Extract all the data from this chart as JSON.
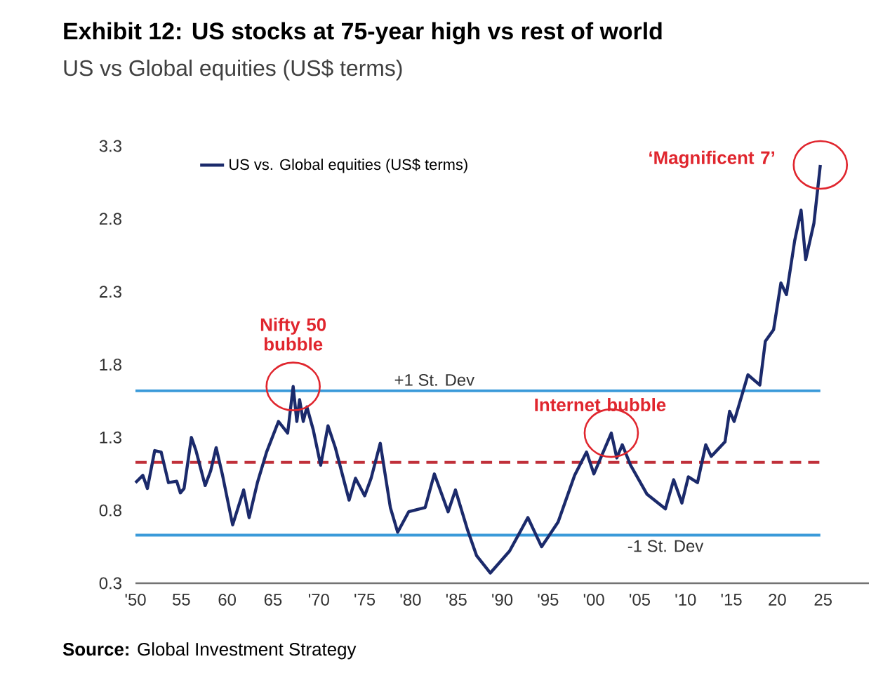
{
  "chart_data": {
    "type": "line",
    "title": "Exhibit 12: US stocks at 75-year high vs rest of world",
    "subtitle": "US vs Global equities (US$ terms)",
    "series": [
      {
        "name": "US vs. Global equities (US$ terms)",
        "color": "#1b2a6b",
        "x": [
          1950.0,
          1950.8,
          1951.3,
          1952.1,
          1952.8,
          1953.6,
          1954.5,
          1954.9,
          1955.3,
          1956.1,
          1956.6,
          1957.6,
          1958.2,
          1958.8,
          1959.5,
          1960.6,
          1961.8,
          1962.4,
          1963.3,
          1964.3,
          1965.6,
          1966.6,
          1967.2,
          1967.6,
          1967.9,
          1968.3,
          1968.7,
          1969.4,
          1970.2,
          1971.0,
          1971.8,
          1973.3,
          1974.0,
          1975.0,
          1975.7,
          1976.7,
          1977.8,
          1978.6,
          1979.8,
          1981.6,
          1982.6,
          1984.1,
          1984.9,
          1986.2,
          1987.2,
          1988.7,
          1990.8,
          1992.8,
          1994.3,
          1996.1,
          1997.9,
          1999.2,
          2000.0,
          2001.9,
          2002.5,
          2003.1,
          2004.0,
          2005.8,
          2007.8,
          2008.7,
          2009.6,
          2010.3,
          2011.3,
          2012.2,
          2012.8,
          2014.3,
          2014.8,
          2015.3,
          2016.8,
          2018.1,
          2018.7,
          2019.6,
          2020.4,
          2021.0,
          2021.9,
          2022.6,
          2023.1,
          2024.0,
          2024.7
        ],
        "values": [
          0.99,
          1.04,
          0.95,
          1.21,
          1.2,
          0.99,
          1.0,
          0.92,
          0.95,
          1.3,
          1.21,
          0.97,
          1.07,
          1.23,
          1.04,
          0.7,
          0.94,
          0.75,
          0.99,
          1.2,
          1.41,
          1.33,
          1.65,
          1.41,
          1.56,
          1.41,
          1.51,
          1.35,
          1.11,
          1.38,
          1.23,
          0.87,
          1.02,
          0.9,
          1.02,
          1.26,
          0.82,
          0.65,
          0.79,
          0.82,
          1.05,
          0.79,
          0.94,
          0.67,
          0.49,
          0.37,
          0.52,
          0.75,
          0.55,
          0.72,
          1.04,
          1.2,
          1.05,
          1.33,
          1.16,
          1.25,
          1.11,
          0.91,
          0.81,
          1.01,
          0.85,
          1.03,
          0.99,
          1.25,
          1.17,
          1.27,
          1.48,
          1.41,
          1.73,
          1.66,
          1.96,
          2.04,
          2.36,
          2.28,
          2.65,
          2.86,
          2.52,
          2.77,
          3.17
        ]
      }
    ],
    "xlim": [
      1950,
      2030
    ],
    "ylim": [
      0.3,
      3.3
    ],
    "xticks": [
      {
        "value": 1950,
        "label": "'50"
      },
      {
        "value": 1955,
        "label": "55"
      },
      {
        "value": 1960,
        "label": "60"
      },
      {
        "value": 1965,
        "label": "65"
      },
      {
        "value": 1970,
        "label": "'70"
      },
      {
        "value": 1975,
        "label": "'75"
      },
      {
        "value": 1980,
        "label": "'80"
      },
      {
        "value": 1985,
        "label": "'85"
      },
      {
        "value": 1990,
        "label": "'90"
      },
      {
        "value": 1995,
        "label": "'95"
      },
      {
        "value": 2000,
        "label": "'00"
      },
      {
        "value": 2005,
        "label": "'05"
      },
      {
        "value": 2010,
        "label": "'10"
      },
      {
        "value": 2015,
        "label": "'15"
      },
      {
        "value": 2020,
        "label": "20"
      },
      {
        "value": 2025,
        "label": "25"
      }
    ],
    "yticks": [
      0.3,
      0.8,
      1.3,
      1.8,
      2.3,
      2.8,
      3.3
    ],
    "ref_lines": [
      {
        "axis": "y",
        "value": 1.62,
        "label": "+1 St. Dev",
        "color": "#3a9ad9"
      },
      {
        "axis": "y",
        "value": 1.13,
        "color": "#c0303a",
        "line_style": "dashed"
      },
      {
        "axis": "y",
        "value": 0.63,
        "label": "-1 St. Dev",
        "color": "#3a9ad9"
      }
    ],
    "annotations": [
      {
        "text": "Nifty 50 bubble",
        "x": 1967.2,
        "y": 1.65
      },
      {
        "text": "Internet bubble",
        "x": 2001.9,
        "y": 1.33
      },
      {
        "text": "‘Magnificent 7’",
        "x": 2024.7,
        "y": 3.17
      },
      "**Source:** Global Investment Strategy"
    ],
    "legend": "top left"
  }
}
